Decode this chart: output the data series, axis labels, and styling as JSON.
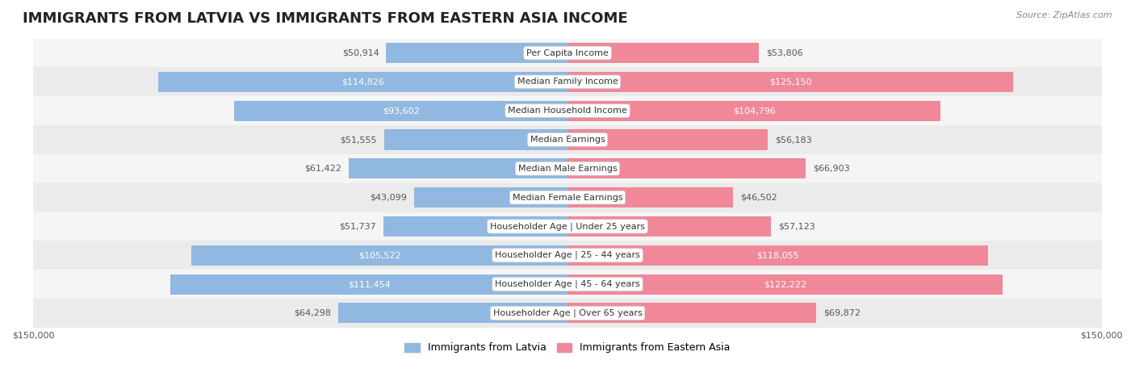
{
  "title": "IMMIGRANTS FROM LATVIA VS IMMIGRANTS FROM EASTERN ASIA INCOME",
  "source": "Source: ZipAtlas.com",
  "categories": [
    "Per Capita Income",
    "Median Family Income",
    "Median Household Income",
    "Median Earnings",
    "Median Male Earnings",
    "Median Female Earnings",
    "Householder Age | Under 25 years",
    "Householder Age | 25 - 44 years",
    "Householder Age | 45 - 64 years",
    "Householder Age | Over 65 years"
  ],
  "latvia_values": [
    50914,
    114826,
    93602,
    51555,
    61422,
    43099,
    51737,
    105522,
    111454,
    64298
  ],
  "eastern_asia_values": [
    53806,
    125150,
    104796,
    56183,
    66903,
    46502,
    57123,
    118055,
    122222,
    69872
  ],
  "max_value": 150000,
  "latvia_color": "#90b8e0",
  "eastern_asia_color": "#f0889a",
  "latvia_label_color_threshold": 80000,
  "eastern_asia_label_color_threshold": 80000,
  "bar_bg_color": "#e8e8e8",
  "row_bg_colors": [
    "#f5f5f5",
    "#ebebeb"
  ],
  "label_box_color": "#ffffff",
  "label_box_edge_color": "#cccccc",
  "title_fontsize": 13,
  "source_fontsize": 8,
  "category_fontsize": 8,
  "value_fontsize": 8,
  "legend_fontsize": 9,
  "axis_label_fontsize": 8,
  "legend_latvia_color": "#90b8e0",
  "legend_eastern_asia_color": "#f0889a"
}
